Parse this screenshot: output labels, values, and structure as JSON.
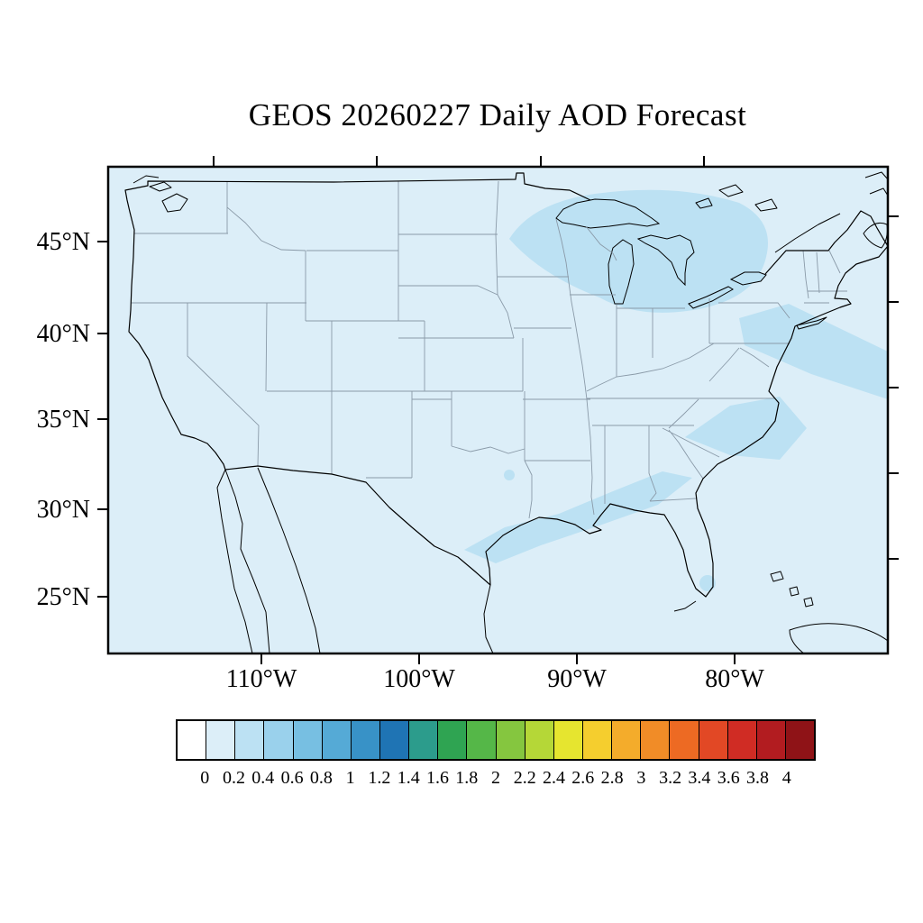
{
  "title": "GEOS 20260227 Daily AOD Forecast",
  "map": {
    "y_axis_labels": [
      "45°N",
      "40°N",
      "35°N",
      "30°N",
      "25°N"
    ],
    "x_axis_labels": [
      "110°W",
      "100°W",
      "90°W",
      "80°W"
    ]
  },
  "colorbar": {
    "tick_labels": [
      "0",
      "0.2",
      "0.4",
      "0.6",
      "0.8",
      "1",
      "1.2",
      "1.4",
      "1.6",
      "1.8",
      "2",
      "2.2",
      "2.4",
      "2.6",
      "2.8",
      "3",
      "3.2",
      "3.4",
      "3.6",
      "3.8",
      "4"
    ],
    "colors": [
      "#FFFFFF",
      "#DCEEF8",
      "#BCE1F3",
      "#9AD1EC",
      "#77BFE2",
      "#55AAD6",
      "#3892C7",
      "#1F74B4",
      "#2C9C8C",
      "#2FA452",
      "#55B748",
      "#85C63F",
      "#B5D737",
      "#E6E52F",
      "#F5CE2E",
      "#F4AC2B",
      "#F18C27",
      "#ED6A23",
      "#E24825",
      "#D02C24",
      "#B21C20",
      "#8F1317"
    ]
  },
  "colors": {
    "map_background": "#DCEEF8",
    "aod_low_patch": "#BCE1F3",
    "state_border": "#8A9AA8",
    "outline": "#000000"
  },
  "chart_data": {
    "type": "heatmap",
    "title": "GEOS 20260227 Daily AOD Forecast",
    "variable": "AOD",
    "x_ticks": [
      "110°W",
      "100°W",
      "90°W",
      "80°W"
    ],
    "y_ticks": [
      "45°N",
      "40°N",
      "35°N",
      "30°N",
      "25°N"
    ],
    "colorbar_levels": [
      0,
      0.2,
      0.4,
      0.6,
      0.8,
      1,
      1.2,
      1.4,
      1.6,
      1.8,
      2,
      2.2,
      2.4,
      2.6,
      2.8,
      3,
      3.2,
      3.4,
      3.6,
      3.8,
      4
    ],
    "legend_position": "bottom",
    "summary": "AOD is 0-0.2 over most of the contiguous United States and adjacent ocean; values of 0.2-0.4 appear over the Great Lakes and southern Ontario, a Gulf Coast to Southeast band from Louisiana through Alabama and Georgia to the Carolinas, the western Atlantic offshore of the mid-Atlantic coast, and a small area over south Florida."
  }
}
